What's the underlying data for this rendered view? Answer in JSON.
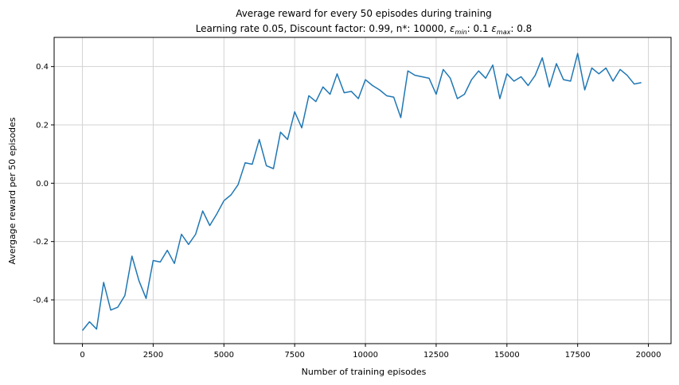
{
  "chart_data": {
    "type": "line",
    "title": "Average reward for every 50 episodes during training",
    "subtitle_parts": {
      "prefix": "Learning rate 0.05, Discount factor: 0.99, n*: 10000, ",
      "eps_min_symbol": "ε",
      "eps_min_sub": "min",
      "eps_min_value": ": 0.1 ",
      "eps_max_symbol": "ε",
      "eps_max_sub": "max",
      "eps_max_value": ": 0.8"
    },
    "xlabel": "Number of training episodes",
    "ylabel": "Avergage reward per 50 episodes",
    "xlim": [
      -1000,
      20800
    ],
    "ylim": [
      -0.55,
      0.5
    ],
    "xticks": [
      0,
      2500,
      5000,
      7500,
      10000,
      12500,
      15000,
      17500,
      20000
    ],
    "yticks": [
      -0.4,
      -0.2,
      0.0,
      0.2,
      0.4
    ],
    "xtick_labels": [
      "0",
      "2500",
      "5000",
      "7500",
      "10000",
      "12500",
      "15000",
      "17500",
      "20000"
    ],
    "ytick_labels": [
      "-0.4",
      "-0.2",
      "0.0",
      "0.2",
      "0.4"
    ],
    "grid": true,
    "line_color": "#1f77b4",
    "x": [
      0,
      250,
      500,
      750,
      1000,
      1250,
      1500,
      1750,
      2000,
      2250,
      2500,
      2750,
      3000,
      3250,
      3500,
      3750,
      4000,
      4250,
      4500,
      4750,
      5000,
      5250,
      5500,
      5750,
      6000,
      6250,
      6500,
      6750,
      7000,
      7250,
      7500,
      7750,
      8000,
      8250,
      8500,
      8750,
      9000,
      9250,
      9500,
      9750,
      10000,
      10250,
      10500,
      10750,
      11000,
      11250,
      11500,
      11750,
      12000,
      12250,
      12500,
      12750,
      13000,
      13250,
      13500,
      13750,
      14000,
      14250,
      14500,
      14750,
      15000,
      15250,
      15500,
      15750,
      16000,
      16250,
      16500,
      16750,
      17000,
      17250,
      17500,
      17750,
      18000,
      18250,
      18500,
      18750,
      19000,
      19250,
      19500,
      19750
    ],
    "series": [
      {
        "values": [
          -0.505,
          -0.475,
          -0.5,
          -0.34,
          -0.435,
          -0.425,
          -0.385,
          -0.25,
          -0.335,
          -0.395,
          -0.265,
          -0.27,
          -0.23,
          -0.275,
          -0.175,
          -0.21,
          -0.175,
          -0.095,
          -0.145,
          -0.105,
          -0.06,
          -0.04,
          -0.005,
          0.07,
          0.065,
          0.15,
          0.06,
          0.05,
          0.175,
          0.15,
          0.245,
          0.19,
          0.3,
          0.28,
          0.33,
          0.305,
          0.375,
          0.31,
          0.315,
          0.29,
          0.355,
          0.335,
          0.32,
          0.3,
          0.295,
          0.225,
          0.385,
          0.37,
          0.365,
          0.36,
          0.305,
          0.39,
          0.36,
          0.29,
          0.305,
          0.355,
          0.385,
          0.36,
          0.405,
          0.29,
          0.375,
          0.35,
          0.365,
          0.335,
          0.37,
          0.43,
          0.33,
          0.41,
          0.355,
          0.35,
          0.445,
          0.32,
          0.395,
          0.375,
          0.395,
          0.35,
          0.39,
          0.37,
          0.34,
          0.345
        ]
      }
    ]
  }
}
